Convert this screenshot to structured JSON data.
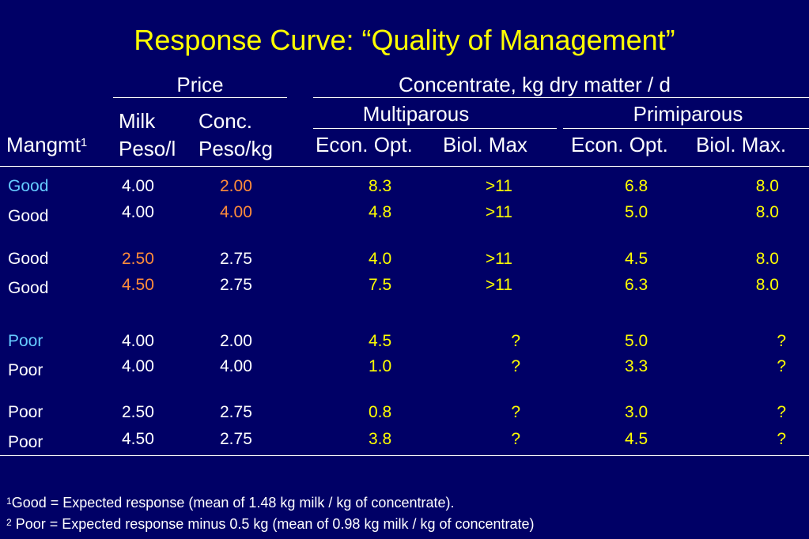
{
  "slide": {
    "title": "Response Curve: “Quality of Management”",
    "header": {
      "price": "Price",
      "concentrate": "Concentrate, kg dry matter / d",
      "multiparous": "Multiparous",
      "primiparous": "Primiparous",
      "mangmt": "Mangmt",
      "mangmt_sup": "1",
      "milk_l1": "Milk",
      "milk_l2": "Peso/l",
      "conc_l1": "Conc.",
      "conc_l2": "Peso/kg",
      "econ_opt_m": "Econ. Opt.",
      "biol_max_m": "Biol. Max",
      "econ_opt_p": "Econ. Opt.",
      "biol_max_p": "Biol. Max."
    },
    "rows": [
      {
        "mgmt": "Good",
        "milk": "4.00",
        "conc": "2.00",
        "m_econ": "8.3",
        "m_biol": ">11",
        "p_econ": "6.8",
        "p_biol": "8.0"
      },
      {
        "mgmt": "Good",
        "milk": "4.00",
        "conc": "4.00",
        "m_econ": "4.8",
        "m_biol": ">11",
        "p_econ": "5.0",
        "p_biol": "8.0"
      },
      {
        "mgmt": "Good",
        "milk": "2.50",
        "conc": "2.75",
        "m_econ": "4.0",
        "m_biol": ">11",
        "p_econ": "4.5",
        "p_biol": "8.0"
      },
      {
        "mgmt": "Good",
        "milk": "4.50",
        "conc": "2.75",
        "m_econ": "7.5",
        "m_biol": ">11",
        "p_econ": "6.3",
        "p_biol": "8.0"
      },
      {
        "mgmt": "Poor",
        "milk": "4.00",
        "conc": "2.00",
        "m_econ": "4.5",
        "m_biol": "?",
        "p_econ": "5.0",
        "p_biol": "?"
      },
      {
        "mgmt": "Poor",
        "milk": "4.00",
        "conc": "4.00",
        "m_econ": "1.0",
        "m_biol": "?",
        "p_econ": "3.3",
        "p_biol": "?"
      },
      {
        "mgmt": "Poor",
        "milk": "2.50",
        "conc": "2.75",
        "m_econ": "0.8",
        "m_biol": "?",
        "p_econ": "3.0",
        "p_biol": "?"
      },
      {
        "mgmt": "Poor",
        "milk": "4.50",
        "conc": "2.75",
        "m_econ": "3.8",
        "m_biol": "?",
        "p_econ": "4.5",
        "p_biol": "?"
      }
    ],
    "footnotes": {
      "f1_sup": "1",
      "f1_text": "Good = Expected response (mean of 1.48 kg milk / kg of concentrate).",
      "f2_sup": "2",
      "f2_text": " Poor = Expected response minus 0.5 kg (mean of 0.98 kg milk / kg of concentrate)"
    },
    "colors": {
      "background": "#000066",
      "title": "#ffff00",
      "values": "#ffff00",
      "highlight": "#ff8c3a",
      "group_label": "#66ccff",
      "text": "#ffffff"
    }
  }
}
